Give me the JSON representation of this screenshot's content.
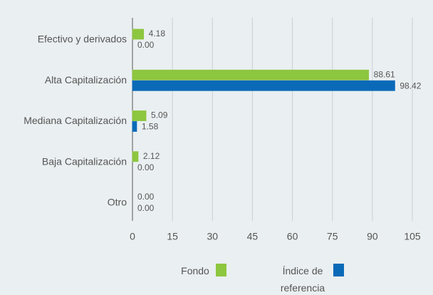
{
  "chart_data": {
    "type": "hbar",
    "categories": [
      "Efectivo y derivados",
      "Alta Capitalización",
      "Mediana Capitalización",
      "Baja Capitalización",
      "Otro"
    ],
    "series": [
      {
        "name": "Fondo",
        "color": "#8dc63f",
        "values": [
          4.18,
          88.61,
          5.09,
          2.12,
          0
        ],
        "value_labels": [
          "4.18",
          "88.61",
          "5.09",
          "2.12",
          "0.00"
        ]
      },
      {
        "name": "Índice de referencia",
        "color": "#0a6ab8",
        "values": [
          0,
          98.42,
          1.58,
          0,
          0
        ],
        "value_labels": [
          "0.00",
          "98.42",
          "1.58",
          "0.00",
          "0.00"
        ]
      }
    ],
    "xlim": [
      0,
      105
    ],
    "xticks": [
      0,
      15,
      30,
      45,
      60,
      75,
      90,
      105
    ],
    "grid": true
  }
}
